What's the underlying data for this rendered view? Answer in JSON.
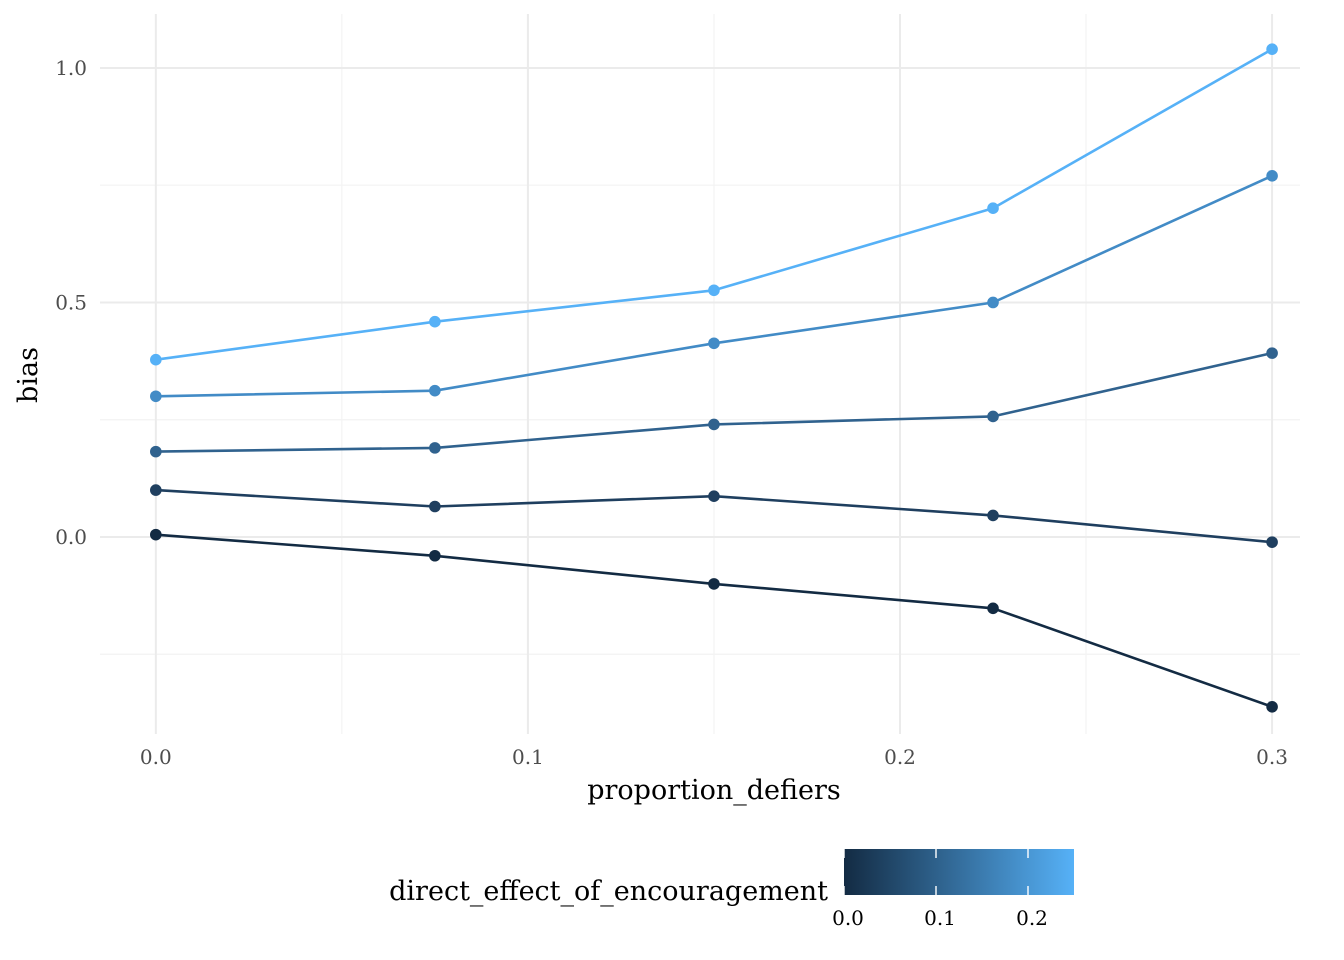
{
  "chart_data": {
    "type": "line",
    "xlabel": "proportion_defiers",
    "ylabel": "bias",
    "xlim": [
      -0.015,
      0.3075
    ],
    "ylim": [
      -0.42,
      1.115
    ],
    "x_ticks": [
      0.0,
      0.1,
      0.2,
      0.3
    ],
    "x_tick_labels": [
      "0.0",
      "0.1",
      "0.2",
      "0.3"
    ],
    "x_minor": [
      0.05,
      0.15,
      0.25
    ],
    "y_ticks": [
      0.0,
      0.5,
      1.0
    ],
    "y_tick_labels": [
      "0.0",
      "0.5",
      "1.0"
    ],
    "y_minor": [
      -0.25,
      0.25,
      0.75
    ],
    "grid": true,
    "x": [
      0.0,
      0.075,
      0.15,
      0.225,
      0.3
    ],
    "series": [
      {
        "direct_effect": 0.0,
        "color": "#132B43",
        "values": [
          0.005,
          -0.04,
          -0.1,
          -0.152,
          -0.362
        ]
      },
      {
        "direct_effect": 0.05,
        "color": "#1F3F5F",
        "values": [
          0.1,
          0.065,
          0.087,
          0.046,
          -0.011
        ]
      },
      {
        "direct_effect": 0.1,
        "color": "#30628E",
        "values": [
          0.182,
          0.19,
          0.24,
          0.257,
          0.392
        ]
      },
      {
        "direct_effect": 0.2,
        "color": "#428BC6",
        "values": [
          0.3,
          0.312,
          0.413,
          0.5,
          0.77
        ]
      },
      {
        "direct_effect": 0.25,
        "color": "#56B1F7",
        "values": [
          0.378,
          0.459,
          0.526,
          0.701,
          1.04
        ]
      }
    ],
    "legend": {
      "title": "direct_effect_of_encouragement",
      "placement": "bottom",
      "type": "colorbar",
      "range": [
        0.0,
        0.25
      ],
      "low_color": "#132B43",
      "high_color": "#56B1F7",
      "ticks": [
        0.0,
        0.1,
        0.2
      ],
      "tick_labels": [
        "0.0",
        "0.1",
        "0.2"
      ]
    }
  }
}
